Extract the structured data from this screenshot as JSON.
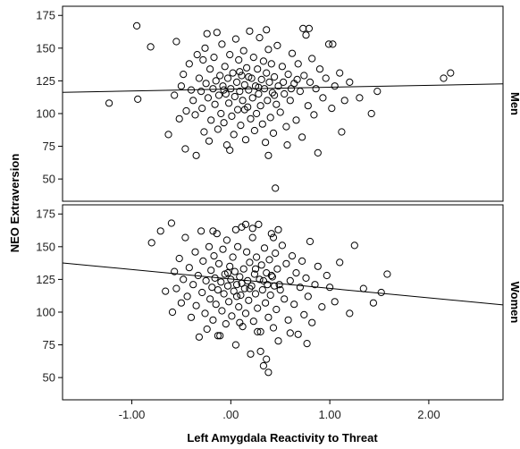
{
  "chart_data": {
    "type": "scatter",
    "xlabel": "Left Amygdala Reactivity to Threat",
    "ylabel": "NEO Extraversion",
    "xlim": [
      -1.7,
      2.75
    ],
    "ylim": [
      33,
      182
    ],
    "x_ticks": [
      -1.0,
      0.0,
      1.0,
      2.0
    ],
    "x_tick_labels": [
      "-1.00",
      ".00",
      "1.00",
      "2.00"
    ],
    "y_ticks": [
      50,
      75,
      100,
      125,
      150,
      175
    ],
    "y_tick_labels": [
      "50",
      "75",
      "100",
      "125",
      "150",
      "175"
    ],
    "grid": false,
    "legend": "none",
    "marker": "open circle",
    "panels": [
      {
        "facet_label": "Men",
        "fit_line": {
          "intercept": 118.7,
          "slope": 1.44
        },
        "points": [
          [
            -1.23,
            108
          ],
          [
            -0.95,
            167
          ],
          [
            -0.94,
            111
          ],
          [
            -0.81,
            151
          ],
          [
            -0.63,
            84
          ],
          [
            -0.57,
            114
          ],
          [
            -0.55,
            155
          ],
          [
            -0.52,
            96
          ],
          [
            -0.5,
            121
          ],
          [
            -0.48,
            130
          ],
          [
            -0.46,
            73
          ],
          [
            -0.45,
            102
          ],
          [
            -0.42,
            138
          ],
          [
            -0.4,
            118
          ],
          [
            -0.38,
            110
          ],
          [
            -0.36,
            99
          ],
          [
            -0.35,
            68
          ],
          [
            -0.34,
            145
          ],
          [
            -0.32,
            127
          ],
          [
            -0.3,
            117
          ],
          [
            -0.29,
            104
          ],
          [
            -0.27,
            86
          ],
          [
            -0.26,
            150
          ],
          [
            -0.25,
            123
          ],
          [
            -0.24,
            161
          ],
          [
            -0.23,
            112
          ],
          [
            -0.22,
            79
          ],
          [
            -0.21,
            134
          ],
          [
            -0.2,
            95
          ],
          [
            -0.18,
            119
          ],
          [
            -0.17,
            143
          ],
          [
            -0.16,
            107
          ],
          [
            -0.15,
            125
          ],
          [
            -0.14,
            162
          ],
          [
            -0.13,
            88
          ],
          [
            -0.12,
            114
          ],
          [
            -0.11,
            129
          ],
          [
            -0.1,
            100
          ],
          [
            -0.09,
            153
          ],
          [
            -0.08,
            121
          ],
          [
            -0.07,
            93
          ],
          [
            -0.06,
            136
          ],
          [
            -0.05,
            115
          ],
          [
            -0.04,
            76
          ],
          [
            -0.03,
            127
          ],
          [
            -0.02,
            108
          ],
          [
            -0.01,
            145
          ],
          [
            0.0,
            119
          ],
          [
            0.01,
            98
          ],
          [
            0.02,
            131
          ],
          [
            0.03,
            84
          ],
          [
            0.04,
            113
          ],
          [
            0.05,
            157
          ],
          [
            0.06,
            124
          ],
          [
            0.07,
            103
          ],
          [
            0.08,
            141
          ],
          [
            0.09,
            117
          ],
          [
            0.1,
            91
          ],
          [
            0.11,
            129
          ],
          [
            0.12,
            110
          ],
          [
            0.13,
            148
          ],
          [
            0.14,
            122
          ],
          [
            0.15,
            80
          ],
          [
            0.16,
            135
          ],
          [
            0.17,
            105
          ],
          [
            0.18,
            118
          ],
          [
            0.19,
            163
          ],
          [
            0.2,
            96
          ],
          [
            0.21,
            127
          ],
          [
            0.22,
            112
          ],
          [
            0.23,
            143
          ],
          [
            0.24,
            87
          ],
          [
            0.25,
            121
          ],
          [
            0.26,
            100
          ],
          [
            0.27,
            134
          ],
          [
            0.28,
            115
          ],
          [
            0.29,
            158
          ],
          [
            0.3,
            106
          ],
          [
            0.31,
            126
          ],
          [
            0.32,
            92
          ],
          [
            0.33,
            140
          ],
          [
            0.34,
            119
          ],
          [
            0.35,
            78
          ],
          [
            0.36,
            131
          ],
          [
            0.37,
            110
          ],
          [
            0.38,
            149
          ],
          [
            0.39,
            124
          ],
          [
            0.4,
            97
          ],
          [
            0.41,
            138
          ],
          [
            0.42,
            116
          ],
          [
            0.43,
            85
          ],
          [
            0.44,
            128
          ],
          [
            0.45,
            43
          ],
          [
            0.46,
            107
          ],
          [
            0.47,
            152
          ],
          [
            0.48,
            121
          ],
          [
            0.5,
            101
          ],
          [
            0.52,
            136
          ],
          [
            0.54,
            115
          ],
          [
            0.56,
            90
          ],
          [
            0.58,
            130
          ],
          [
            0.6,
            110
          ],
          [
            0.62,
            146
          ],
          [
            0.64,
            123
          ],
          [
            0.66,
            95
          ],
          [
            0.68,
            138
          ],
          [
            0.7,
            117
          ],
          [
            0.72,
            82
          ],
          [
            0.74,
            129
          ],
          [
            0.76,
            160
          ],
          [
            0.78,
            106
          ],
          [
            0.8,
            124
          ],
          [
            0.82,
            142
          ],
          [
            0.84,
            99
          ],
          [
            0.86,
            119
          ],
          [
            0.88,
            70
          ],
          [
            0.9,
            134
          ],
          [
            0.93,
            112
          ],
          [
            0.96,
            127
          ],
          [
            0.99,
            153
          ],
          [
            1.02,
            104
          ],
          [
            1.05,
            121
          ],
          [
            1.1,
            131
          ],
          [
            1.15,
            110
          ],
          [
            1.2,
            124
          ],
          [
            1.3,
            112
          ],
          [
            1.42,
            100
          ],
          [
            1.48,
            117
          ],
          [
            2.15,
            127
          ],
          [
            2.22,
            131
          ],
          [
            -0.28,
            141
          ],
          [
            0.36,
            164
          ],
          [
            0.73,
            165
          ],
          [
            0.79,
            165
          ],
          [
            1.03,
            153
          ],
          [
            1.12,
            86
          ],
          [
            0.57,
            76
          ],
          [
            0.38,
            68
          ],
          [
            -0.01,
            72
          ],
          [
            0.61,
            119
          ],
          [
            0.67,
            126
          ],
          [
            0.09,
            132
          ],
          [
            0.28,
            120
          ],
          [
            0.14,
            103
          ],
          [
            -0.07,
            118
          ],
          [
            0.44,
            114
          ],
          [
            0.53,
            124
          ],
          [
            0.18,
            128
          ]
        ]
      },
      {
        "facet_label": "Women",
        "fit_line": {
          "intercept": 125.3,
          "slope": -7.2
        },
        "points": [
          [
            -0.8,
            153
          ],
          [
            -0.71,
            162
          ],
          [
            -0.66,
            116
          ],
          [
            -0.6,
            168
          ],
          [
            -0.59,
            100
          ],
          [
            -0.57,
            131
          ],
          [
            -0.55,
            118
          ],
          [
            -0.52,
            141
          ],
          [
            -0.5,
            107
          ],
          [
            -0.48,
            125
          ],
          [
            -0.46,
            157
          ],
          [
            -0.44,
            112
          ],
          [
            -0.42,
            134
          ],
          [
            -0.4,
            96
          ],
          [
            -0.38,
            121
          ],
          [
            -0.36,
            146
          ],
          [
            -0.35,
            105
          ],
          [
            -0.33,
            128
          ],
          [
            -0.32,
            81
          ],
          [
            -0.3,
            162
          ],
          [
            -0.29,
            115
          ],
          [
            -0.28,
            139
          ],
          [
            -0.26,
            99
          ],
          [
            -0.25,
            124
          ],
          [
            -0.24,
            87
          ],
          [
            -0.22,
            150
          ],
          [
            -0.21,
            110
          ],
          [
            -0.2,
            132
          ],
          [
            -0.19,
            119
          ],
          [
            -0.18,
            94
          ],
          [
            -0.17,
            143
          ],
          [
            -0.16,
            126
          ],
          [
            -0.15,
            106
          ],
          [
            -0.14,
            160
          ],
          [
            -0.13,
            117
          ],
          [
            -0.12,
            137
          ],
          [
            -0.11,
            82
          ],
          [
            -0.1,
            123
          ],
          [
            -0.09,
            101
          ],
          [
            -0.08,
            148
          ],
          [
            -0.07,
            114
          ],
          [
            -0.06,
            129
          ],
          [
            -0.05,
            91
          ],
          [
            -0.04,
            155
          ],
          [
            -0.03,
            120
          ],
          [
            -0.02,
            108
          ],
          [
            -0.01,
            135
          ],
          [
            0.0,
            125
          ],
          [
            0.01,
            97
          ],
          [
            0.02,
            142
          ],
          [
            0.03,
            116
          ],
          [
            0.04,
            131
          ],
          [
            0.05,
            75
          ],
          [
            0.06,
            121
          ],
          [
            0.07,
            150
          ],
          [
            0.08,
            104
          ],
          [
            0.09,
            127
          ],
          [
            0.1,
            113
          ],
          [
            0.11,
            165
          ],
          [
            0.12,
            89
          ],
          [
            0.13,
            133
          ],
          [
            0.14,
            118
          ],
          [
            0.15,
            99
          ],
          [
            0.16,
            146
          ],
          [
            0.17,
            124
          ],
          [
            0.18,
            109
          ],
          [
            0.19,
            138
          ],
          [
            0.2,
            68
          ],
          [
            0.21,
            120
          ],
          [
            0.22,
            157
          ],
          [
            0.23,
            93
          ],
          [
            0.24,
            129
          ],
          [
            0.25,
            114
          ],
          [
            0.26,
            142
          ],
          [
            0.27,
            103
          ],
          [
            0.28,
            167
          ],
          [
            0.29,
            125
          ],
          [
            0.3,
            85
          ],
          [
            0.31,
            136
          ],
          [
            0.32,
            117
          ],
          [
            0.33,
            59
          ],
          [
            0.34,
            149
          ],
          [
            0.35,
            107
          ],
          [
            0.36,
            130
          ],
          [
            0.37,
            121
          ],
          [
            0.38,
            96
          ],
          [
            0.39,
            140
          ],
          [
            0.4,
            113
          ],
          [
            0.41,
            160
          ],
          [
            0.42,
            127
          ],
          [
            0.43,
            88
          ],
          [
            0.44,
            120
          ],
          [
            0.45,
            145
          ],
          [
            0.46,
            102
          ],
          [
            0.47,
            133
          ],
          [
            0.48,
            78
          ],
          [
            0.5,
            117
          ],
          [
            0.52,
            151
          ],
          [
            0.54,
            110
          ],
          [
            0.56,
            137
          ],
          [
            0.58,
            94
          ],
          [
            0.6,
            124
          ],
          [
            0.62,
            143
          ],
          [
            0.64,
            106
          ],
          [
            0.66,
            130
          ],
          [
            0.68,
            83
          ],
          [
            0.7,
            119
          ],
          [
            0.72,
            139
          ],
          [
            0.74,
            98
          ],
          [
            0.76,
            126
          ],
          [
            0.78,
            112
          ],
          [
            0.8,
            154
          ],
          [
            0.82,
            92
          ],
          [
            0.85,
            121
          ],
          [
            0.88,
            135
          ],
          [
            0.92,
            104
          ],
          [
            0.97,
            128
          ],
          [
            1.0,
            119
          ],
          [
            1.05,
            108
          ],
          [
            1.1,
            138
          ],
          [
            1.2,
            99
          ],
          [
            1.25,
            151
          ],
          [
            1.34,
            118
          ],
          [
            1.44,
            107
          ],
          [
            1.52,
            115
          ],
          [
            1.58,
            129
          ],
          [
            0.38,
            54
          ],
          [
            0.3,
            70
          ],
          [
            0.36,
            64
          ],
          [
            0.15,
            167
          ],
          [
            0.22,
            164
          ],
          [
            0.43,
            157
          ],
          [
            -0.18,
            162
          ],
          [
            0.05,
            163
          ],
          [
            0.77,
            76
          ],
          [
            0.6,
            84
          ],
          [
            -0.13,
            82
          ],
          [
            0.48,
            163
          ],
          [
            0.09,
            92
          ],
          [
            0.27,
            85
          ],
          [
            0.33,
            124
          ],
          [
            0.11,
            122
          ],
          [
            -0.03,
            130
          ],
          [
            0.19,
            118
          ],
          [
            0.41,
            128
          ],
          [
            0.25,
            133
          ],
          [
            0.06,
            112
          ],
          [
            0.49,
            121
          ]
        ]
      }
    ]
  }
}
